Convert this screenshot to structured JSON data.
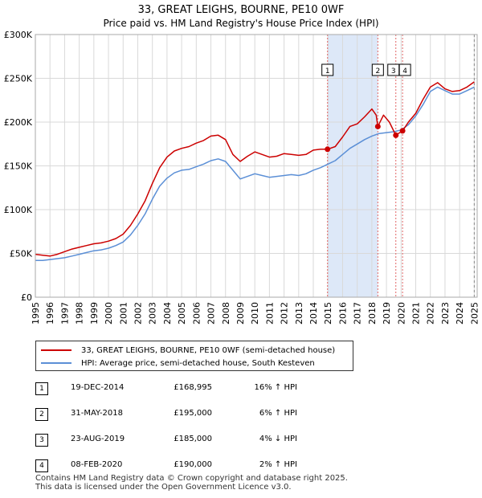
{
  "chart_data": {
    "type": "line",
    "title": "33, GREAT LEIGHS, BOURNE, PE10 0WF",
    "subtitle": "Price paid vs. HM Land Registry's House Price Index (HPI)",
    "xlim": [
      1995,
      2025.2
    ],
    "ylim": [
      0,
      300000
    ],
    "y_ticks": [
      0,
      50000,
      100000,
      150000,
      200000,
      250000,
      300000
    ],
    "y_tick_labels": [
      "£0",
      "£50K",
      "£100K",
      "£150K",
      "£200K",
      "£250K",
      "£300K"
    ],
    "x_ticks": [
      1995,
      1996,
      1997,
      1998,
      1999,
      2000,
      2001,
      2002,
      2003,
      2004,
      2005,
      2006,
      2007,
      2008,
      2009,
      2010,
      2011,
      2012,
      2013,
      2014,
      2015,
      2016,
      2017,
      2018,
      2019,
      2020,
      2021,
      2022,
      2023,
      2024,
      2025
    ],
    "x_tick_labels": [
      "1995",
      "1996",
      "1997",
      "1998",
      "1999",
      "2000",
      "2001",
      "2002",
      "2003",
      "2004",
      "2005",
      "2006",
      "2007",
      "2008",
      "2009",
      "2010",
      "2011",
      "2012",
      "2013",
      "2014",
      "2015",
      "2016",
      "2017",
      "2018",
      "2019",
      "2020",
      "2021",
      "2022",
      "2023",
      "2024",
      "2025"
    ],
    "grid": true,
    "shaded_range": [
      2014.97,
      2018.41
    ],
    "series": [
      {
        "name": "33, GREAT LEIGHS, BOURNE, PE10 0WF (semi-detached house)",
        "color": "#cc0000",
        "x": [
          1995,
          1995.5,
          1996,
          1996.5,
          1997,
          1997.5,
          1998,
          1998.5,
          1999,
          1999.5,
          2000,
          2000.5,
          2001,
          2001.5,
          2002,
          2002.5,
          2003,
          2003.5,
          2004,
          2004.5,
          2005,
          2005.5,
          2006,
          2006.5,
          2007,
          2007.5,
          2008,
          2008.5,
          2009,
          2009.5,
          2010,
          2010.5,
          2011,
          2011.5,
          2012,
          2012.5,
          2013,
          2013.5,
          2014,
          2014.5,
          2014.97,
          2015.5,
          2016,
          2016.5,
          2017,
          2017.5,
          2018,
          2018.3,
          2018.41,
          2018.8,
          2019.2,
          2019.64,
          2020.1,
          2020.5,
          2021,
          2021.5,
          2022,
          2022.5,
          2023,
          2023.5,
          2024,
          2024.5,
          2025
        ],
        "y": [
          49000,
          48000,
          47000,
          49000,
          52000,
          55000,
          57000,
          59000,
          61000,
          62000,
          64000,
          67000,
          72000,
          82000,
          95000,
          110000,
          130000,
          148000,
          160000,
          167000,
          170000,
          172000,
          176000,
          179000,
          184000,
          185000,
          180000,
          163000,
          155000,
          161000,
          166000,
          163000,
          160000,
          161000,
          164000,
          163000,
          162000,
          163000,
          168000,
          169000,
          168995,
          172000,
          183000,
          195000,
          198000,
          206000,
          215000,
          208000,
          195000,
          208000,
          200000,
          185000,
          190000,
          200000,
          210000,
          226000,
          240000,
          245000,
          238000,
          235000,
          236000,
          240000,
          246000
        ]
      },
      {
        "name": "HPI: Average price, semi-detached house, South Kesteven",
        "color": "#5b8fd6",
        "x": [
          1995,
          1995.5,
          1996,
          1996.5,
          1997,
          1997.5,
          1998,
          1998.5,
          1999,
          1999.5,
          2000,
          2000.5,
          2001,
          2001.5,
          2002,
          2002.5,
          2003,
          2003.5,
          2004,
          2004.5,
          2005,
          2005.5,
          2006,
          2006.5,
          2007,
          2007.5,
          2008,
          2008.5,
          2009,
          2009.5,
          2010,
          2010.5,
          2011,
          2011.5,
          2012,
          2012.5,
          2013,
          2013.5,
          2014,
          2014.5,
          2015,
          2015.5,
          2016,
          2016.5,
          2017,
          2017.5,
          2018,
          2018.5,
          2019,
          2019.5,
          2020,
          2020.5,
          2021,
          2021.5,
          2022,
          2022.5,
          2023,
          2023.5,
          2024,
          2024.5,
          2025
        ],
        "y": [
          42000,
          42000,
          43000,
          44000,
          45000,
          47000,
          49000,
          51000,
          53000,
          54000,
          56000,
          59000,
          63000,
          71000,
          82000,
          95000,
          112000,
          127000,
          136000,
          142000,
          145000,
          146000,
          149000,
          152000,
          156000,
          158000,
          155000,
          145000,
          135000,
          138000,
          141000,
          139000,
          137000,
          138000,
          139000,
          140000,
          139000,
          141000,
          145000,
          148000,
          152000,
          156000,
          163000,
          170000,
          175000,
          180000,
          184000,
          187000,
          188000,
          189000,
          191000,
          197000,
          207000,
          220000,
          235000,
          240000,
          236000,
          232000,
          232000,
          236000,
          240000
        ]
      }
    ],
    "transactions": [
      {
        "label": "1",
        "x": 2014.97,
        "y": 168995,
        "date": "19-DEC-2014",
        "price": "£168,995",
        "hpi": "16% ↑ HPI"
      },
      {
        "label": "2",
        "x": 2018.41,
        "y": 195000,
        "date": "31-MAY-2018",
        "price": "£195,000",
        "hpi": "6% ↑ HPI"
      },
      {
        "label": "3",
        "x": 2019.64,
        "y": 185000,
        "date": "23-AUG-2019",
        "price": "£185,000",
        "hpi": "4% ↓ HPI"
      },
      {
        "label": "4",
        "x": 2020.1,
        "y": 190000,
        "date": "08-FEB-2020",
        "price": "£190,000",
        "hpi": "2% ↑ HPI"
      }
    ]
  },
  "legend": {
    "property": "33, GREAT LEIGHS, BOURNE, PE10 0WF (semi-detached house)",
    "hpi": "HPI: Average price, semi-detached house, South Kesteven"
  },
  "footer": {
    "line1": "Contains HM Land Registry data © Crown copyright and database right 2025.",
    "line2": "This data is licensed under the Open Government Licence v3.0."
  },
  "colors": {
    "property": "#cc0000",
    "hpi": "#5b8fd6",
    "marker_line": "#e06666",
    "shade": "#dde8f8",
    "grid": "#d9d9d9"
  }
}
